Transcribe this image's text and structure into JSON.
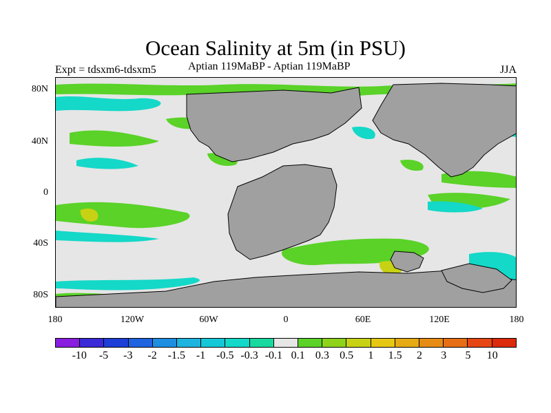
{
  "title": "Ocean Salinity at 5m (in PSU)",
  "subtitle_left": "Expt = tdsxm6-tdsxm5",
  "subtitle_center": "Aptian  119MaBP - Aptian  119MaBP",
  "subtitle_right": "JJA",
  "map": {
    "projection": "cylindrical equidistant",
    "lon_range": [
      -180,
      180
    ],
    "lat_range": [
      -90,
      90
    ],
    "y_ticks": [
      "80N",
      "40N",
      "0",
      "40S",
      "80S"
    ],
    "x_ticks": [
      "180",
      "120W",
      "60W",
      "0",
      "60E",
      "120E",
      "180"
    ],
    "land_color": "#a0a0a0",
    "ocean_neutral_color": "#e6e6e6"
  },
  "colorbar": {
    "labels": [
      "-10",
      "-5",
      "-3",
      "-2",
      "-1.5",
      "-1",
      "-0.5",
      "-0.3",
      "-0.1",
      "0.1",
      "0.3",
      "0.5",
      "1",
      "1.5",
      "2",
      "3",
      "5",
      "10"
    ],
    "colors": [
      "#8a1ee0",
      "#3a2ad8",
      "#1e3ed8",
      "#1e64e0",
      "#1e8ee0",
      "#1eb4e0",
      "#14c8d8",
      "#14d8c8",
      "#18d8a0",
      "#e6e6e6",
      "#5ad228",
      "#8ed21a",
      "#c8d214",
      "#e6c814",
      "#e6aa14",
      "#e68c14",
      "#e66e14",
      "#e64614",
      "#dc2a0a"
    ]
  }
}
